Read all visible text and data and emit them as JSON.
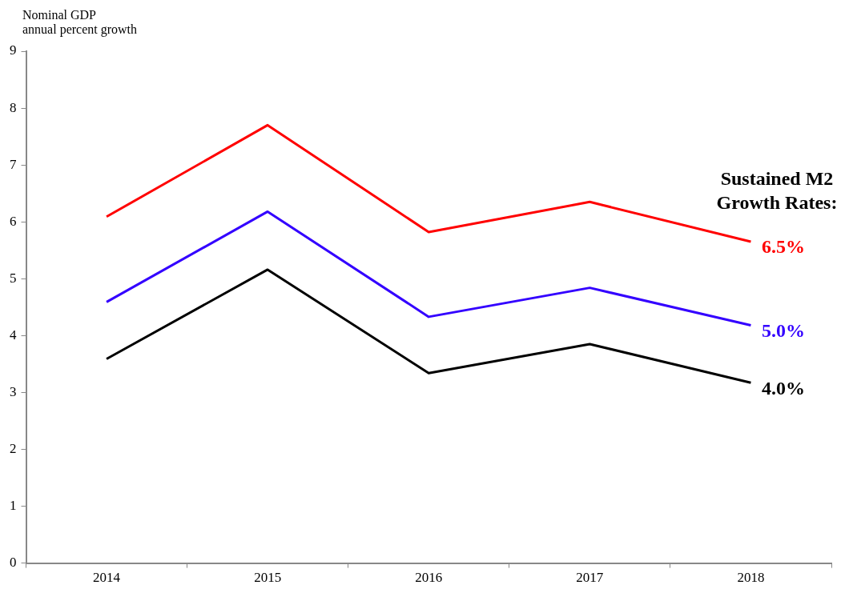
{
  "chart_data": {
    "type": "line",
    "ylabel": "Nominal GDP\nannual percent growth",
    "legend_title": "Sustained M2\nGrowth Rates:",
    "categories": [
      "2014",
      "2015",
      "2016",
      "2017",
      "2018"
    ],
    "series": [
      {
        "name": "6.5%",
        "color": "#ff0000",
        "values": [
          6.09,
          7.7,
          5.82,
          6.35,
          5.65
        ]
      },
      {
        "name": "5.0%",
        "color": "#3300ff",
        "values": [
          4.59,
          6.18,
          4.33,
          4.84,
          4.18
        ]
      },
      {
        "name": "4.0%",
        "color": "#000000",
        "values": [
          3.59,
          5.16,
          3.34,
          3.85,
          3.17
        ]
      }
    ],
    "ylim": [
      0,
      9
    ],
    "yticks": [
      0,
      1,
      2,
      3,
      4,
      5,
      6,
      7,
      8,
      9
    ],
    "grid": false,
    "marker": "none",
    "line_style": "solid"
  }
}
